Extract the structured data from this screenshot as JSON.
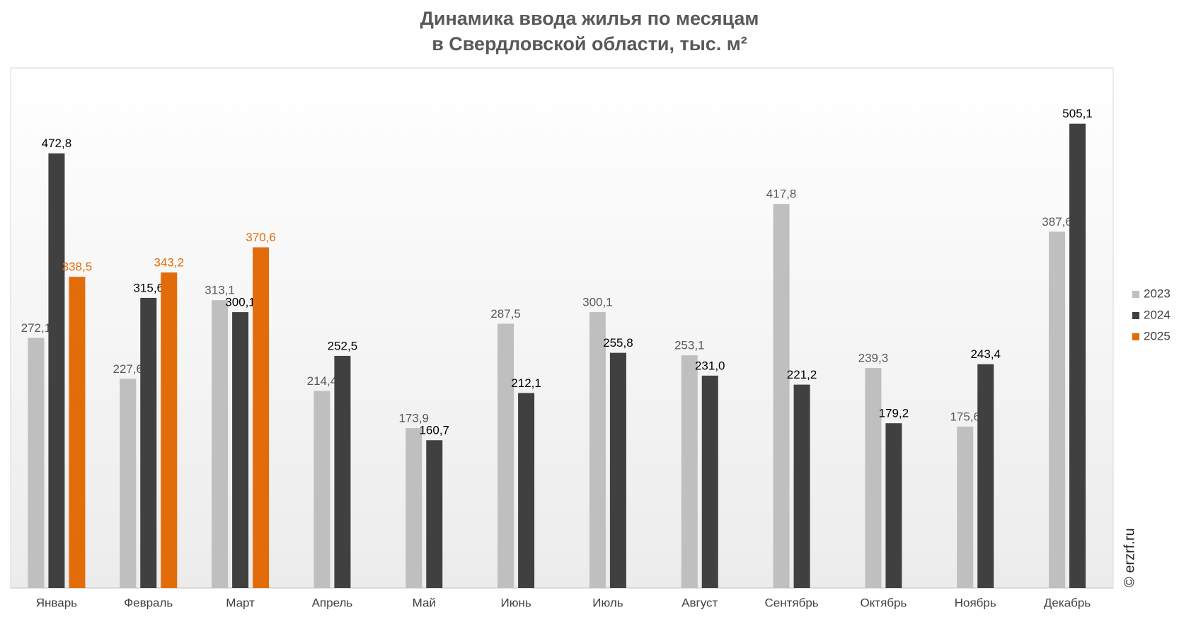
{
  "chart_data": {
    "type": "bar",
    "title": [
      "Динамика ввода жилья по месяцам",
      "в Свердловской области, тыс. м²"
    ],
    "watermark": "© erzrf.ru",
    "categories": [
      "Январь",
      "Февраль",
      "Март",
      "Апрель",
      "Май",
      "Июнь",
      "Июль",
      "Август",
      "Сентябрь",
      "Октябрь",
      "Ноябрь",
      "Декабрь"
    ],
    "series": [
      {
        "name": "2023",
        "color": "#bfbfbf",
        "values": [
          272.1,
          227.6,
          313.1,
          214.4,
          173.9,
          287.5,
          300.1,
          253.1,
          417.8,
          239.3,
          175.6,
          387.6
        ],
        "value_labels": [
          "272,1",
          "227,6",
          "313,1",
          "214,4",
          "173,9",
          "287,5",
          "300,1",
          "253,1",
          "417,8",
          "239,3",
          "175,6",
          "387,6"
        ]
      },
      {
        "name": "2024",
        "color": "#404040",
        "values": [
          472.8,
          315.6,
          300.1,
          252.5,
          160.7,
          212.1,
          255.8,
          231.0,
          221.2,
          179.2,
          243.4,
          505.1
        ],
        "value_labels": [
          "472,8",
          "315,6",
          "300,1",
          "252,5",
          "160,7",
          "212,1",
          "255,8",
          "231,0",
          "221,2",
          "179,2",
          "243,4",
          "505,1"
        ]
      },
      {
        "name": "2025",
        "color": "#e36c0a",
        "values": [
          338.5,
          343.2,
          370.6,
          null,
          null,
          null,
          null,
          null,
          null,
          null,
          null,
          null
        ],
        "value_labels": [
          "338,5",
          "343,2",
          "370,6",
          null,
          null,
          null,
          null,
          null,
          null,
          null,
          null,
          null
        ]
      }
    ],
    "legend": "right"
  }
}
